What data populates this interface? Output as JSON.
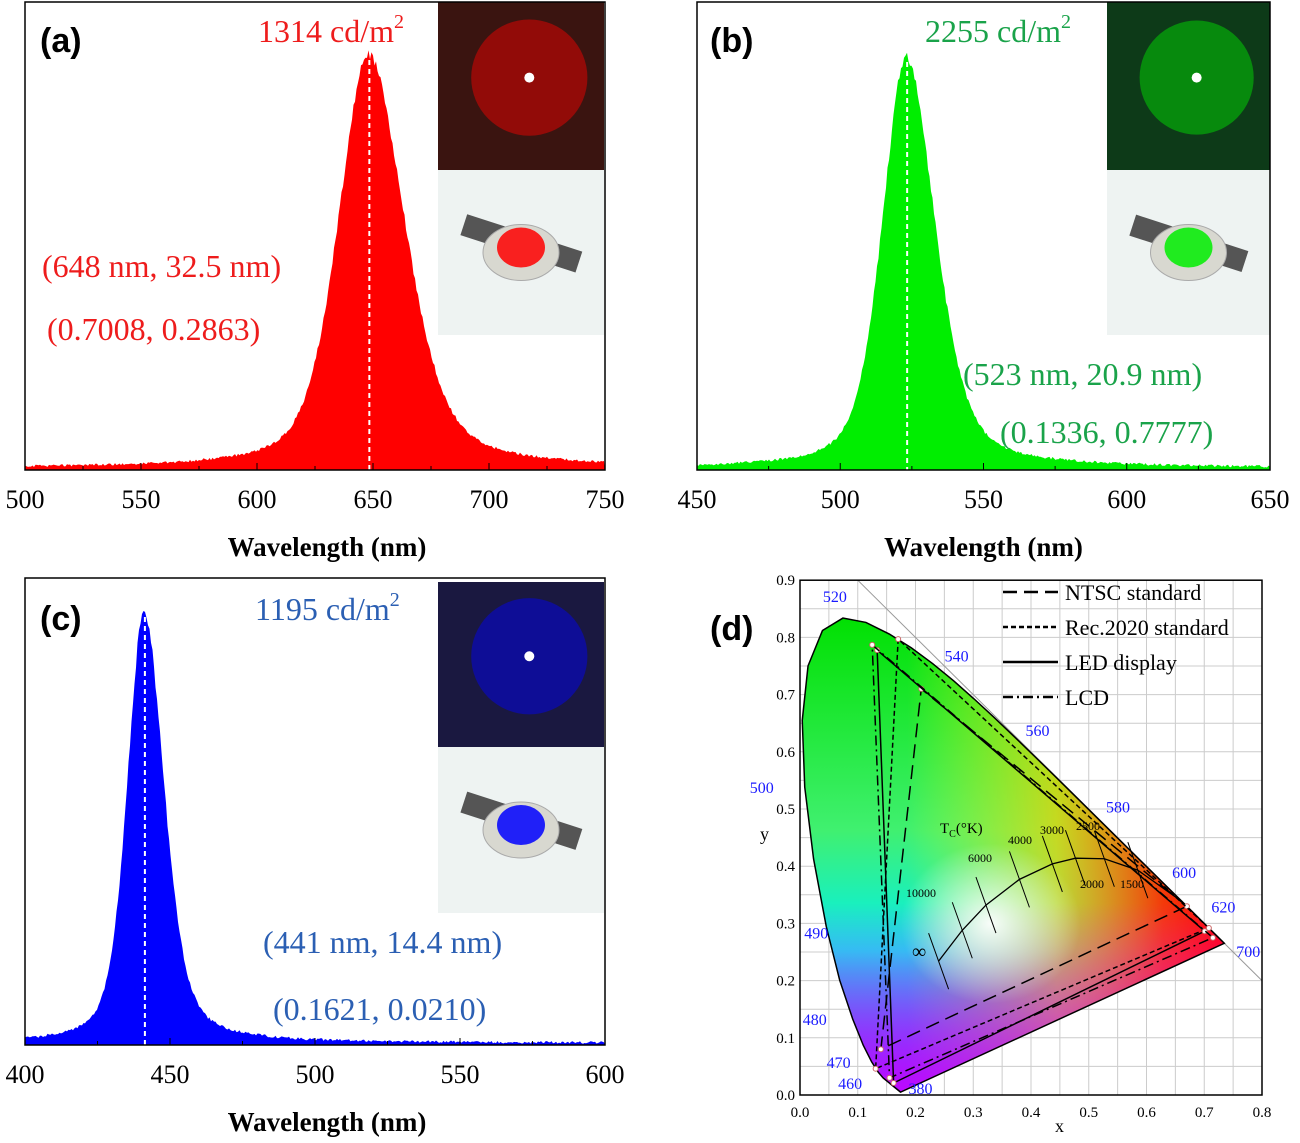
{
  "chart_data": [
    {
      "type": "area",
      "panel_label": "(a)",
      "xlabel": "Wavelength (nm)",
      "ylabel": "",
      "xlim": [
        500,
        750
      ],
      "xticks": [
        "500",
        "550",
        "600",
        "650",
        "700",
        "750"
      ],
      "peak_nm": 648,
      "fwhm_nm": 32.5,
      "luminance": "1314 cd/m",
      "luminance_sup": "2",
      "annotation_1": "(648 nm, 32.5 nm)",
      "annotation_2": "(0.7008, 0.2863)",
      "color": "#ff0000",
      "text_color": "#ee1c1c"
    },
    {
      "type": "area",
      "panel_label": "(b)",
      "xlabel": "Wavelength (nm)",
      "ylabel": "",
      "xlim": [
        450,
        650
      ],
      "xticks": [
        "450",
        "500",
        "550",
        "600",
        "650"
      ],
      "peak_nm": 523,
      "fwhm_nm": 20.9,
      "luminance": "2255 cd/m",
      "luminance_sup": "2",
      "annotation_1": "(523 nm, 20.9 nm)",
      "annotation_2": "(0.1336, 0.7777)",
      "color": "#00ee00",
      "text_color": "#1aa34a"
    },
    {
      "type": "area",
      "panel_label": "(c)",
      "xlabel": "Wavelength (nm)",
      "ylabel": "",
      "xlim": [
        400,
        600
      ],
      "xticks": [
        "400",
        "450",
        "500",
        "550",
        "600"
      ],
      "peak_nm": 441,
      "fwhm_nm": 14.4,
      "luminance": "1195 cd/m",
      "luminance_sup": "2",
      "annotation_1": "(441 nm, 14.4 nm)",
      "annotation_2": "(0.1621, 0.0210)",
      "color": "#0000ff",
      "text_color": "#2b5fb3"
    },
    {
      "type": "scatter",
      "panel_label": "(d)",
      "xlabel": "x",
      "ylabel": "y",
      "xlim": [
        0,
        0.8
      ],
      "ylim": [
        0,
        0.9
      ],
      "grid": true,
      "xticks": [
        "0.0",
        "0.1",
        "0.2",
        "0.3",
        "0.4",
        "0.5",
        "0.6",
        "0.7",
        "0.8"
      ],
      "yticks": [
        "0.0",
        "0.1",
        "0.2",
        "0.3",
        "0.4",
        "0.5",
        "0.6",
        "0.7",
        "0.8",
        "0.9"
      ],
      "wavelength_labels": [
        {
          "nm": "380",
          "x": 0.1741,
          "y": 0.005
        },
        {
          "nm": "460",
          "x": 0.144,
          "y": 0.0297
        },
        {
          "nm": "470",
          "x": 0.1241,
          "y": 0.0578
        },
        {
          "nm": "480",
          "x": 0.0913,
          "y": 0.1327
        },
        {
          "nm": "490",
          "x": 0.0454,
          "y": 0.295
        },
        {
          "nm": "500",
          "x": 0.0082,
          "y": 0.5384
        },
        {
          "nm": "520",
          "x": 0.0743,
          "y": 0.8338
        },
        {
          "nm": "540",
          "x": 0.2296,
          "y": 0.7543
        },
        {
          "nm": "560",
          "x": 0.3731,
          "y": 0.6245
        },
        {
          "nm": "580",
          "x": 0.5125,
          "y": 0.4866
        },
        {
          "nm": "600",
          "x": 0.627,
          "y": 0.3725
        },
        {
          "nm": "620",
          "x": 0.6915,
          "y": 0.3083
        },
        {
          "nm": "700",
          "x": 0.7347,
          "y": 0.2653
        }
      ],
      "planck_title": "T",
      "planck_title_sub": "C",
      "planck_title_rest": "(°K)",
      "planck_points": [
        {
          "label": "∞",
          "x": 0.24,
          "y": 0.234
        },
        {
          "label": "10000",
          "x": 0.281,
          "y": 0.288
        },
        {
          "label": "6000",
          "x": 0.322,
          "y": 0.332
        },
        {
          "label": "4000",
          "x": 0.38,
          "y": 0.377
        },
        {
          "label": "3000",
          "x": 0.437,
          "y": 0.404
        },
        {
          "label": "2500",
          "x": 0.477,
          "y": 0.414
        },
        {
          "label": "2000",
          "x": 0.527,
          "y": 0.413
        },
        {
          "label": "1500",
          "x": 0.585,
          "y": 0.393
        }
      ],
      "series": [
        {
          "name": "NTSC standard",
          "style": "long-dash",
          "points": [
            [
              0.67,
              0.33
            ],
            [
              0.21,
              0.71
            ],
            [
              0.14,
              0.08
            ]
          ]
        },
        {
          "name": "Rec.2020 standard",
          "style": "short-dash",
          "points": [
            [
              0.708,
              0.292
            ],
            [
              0.17,
              0.797
            ],
            [
              0.131,
              0.046
            ]
          ]
        },
        {
          "name": "LED display",
          "style": "solid",
          "points": [
            [
              0.7008,
              0.2863
            ],
            [
              0.1336,
              0.7777
            ],
            [
              0.1621,
              0.021
            ]
          ]
        },
        {
          "name": "LCD",
          "style": "dash-dot",
          "points": [
            [
              0.715,
              0.275
            ],
            [
              0.125,
              0.787
            ],
            [
              0.155,
              0.03
            ]
          ]
        }
      ],
      "legend_position": "top-right"
    }
  ]
}
